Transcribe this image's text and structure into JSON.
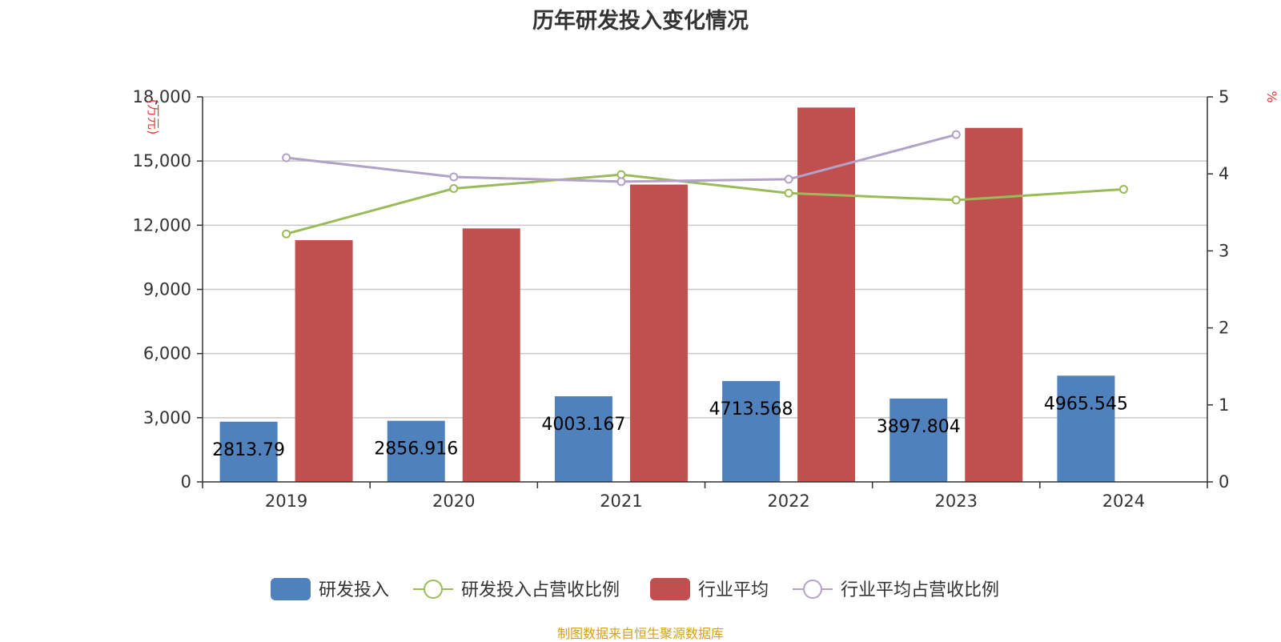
{
  "title": "历年研发投入变化情况",
  "source": "制图数据来自恒生聚源数据库",
  "chart_data": {
    "type": "bar",
    "title": "历年研发投入变化情况",
    "categories": [
      "2019",
      "2020",
      "2021",
      "2022",
      "2023",
      "2024"
    ],
    "y_left": {
      "label": "万元",
      "ylim": [
        0,
        18000
      ],
      "ticks": [
        0,
        3000,
        6000,
        9000,
        12000,
        15000,
        18000
      ],
      "tick_labels": [
        "0",
        "3,000",
        "6,000",
        "9,000",
        "12,000",
        "15,000",
        "18,000"
      ]
    },
    "y_right": {
      "label": "%",
      "ylim": [
        0,
        5
      ],
      "ticks": [
        0,
        1,
        2,
        3,
        4,
        5
      ],
      "tick_labels": [
        "0",
        "1",
        "2",
        "3",
        "4",
        "5"
      ]
    },
    "grid": true,
    "legend_position": "bottom",
    "series": [
      {
        "name": "研发投入",
        "type": "bar",
        "axis": "left",
        "color": "#4f81bd",
        "values": [
          2813.79,
          2856.916,
          4003.167,
          4713.568,
          3897.804,
          4965.545
        ],
        "labels": [
          "2813.79",
          "2856.916",
          "4003.167",
          "4713.568",
          "3897.804",
          "4965.545"
        ]
      },
      {
        "name": "研发投入占营收比例",
        "type": "line",
        "axis": "right",
        "color": "#9bbb59",
        "values": [
          3.22,
          3.81,
          3.99,
          3.75,
          3.66,
          3.8
        ]
      },
      {
        "name": "行业平均",
        "type": "bar",
        "axis": "left",
        "color": "#c0504d",
        "values": [
          11300,
          11850,
          13900,
          17500,
          16550,
          null
        ]
      },
      {
        "name": "行业平均占营收比例",
        "type": "line",
        "axis": "right",
        "color": "#b3a2c7",
        "values": [
          4.21,
          3.96,
          3.9,
          3.93,
          4.51,
          null
        ]
      }
    ]
  }
}
